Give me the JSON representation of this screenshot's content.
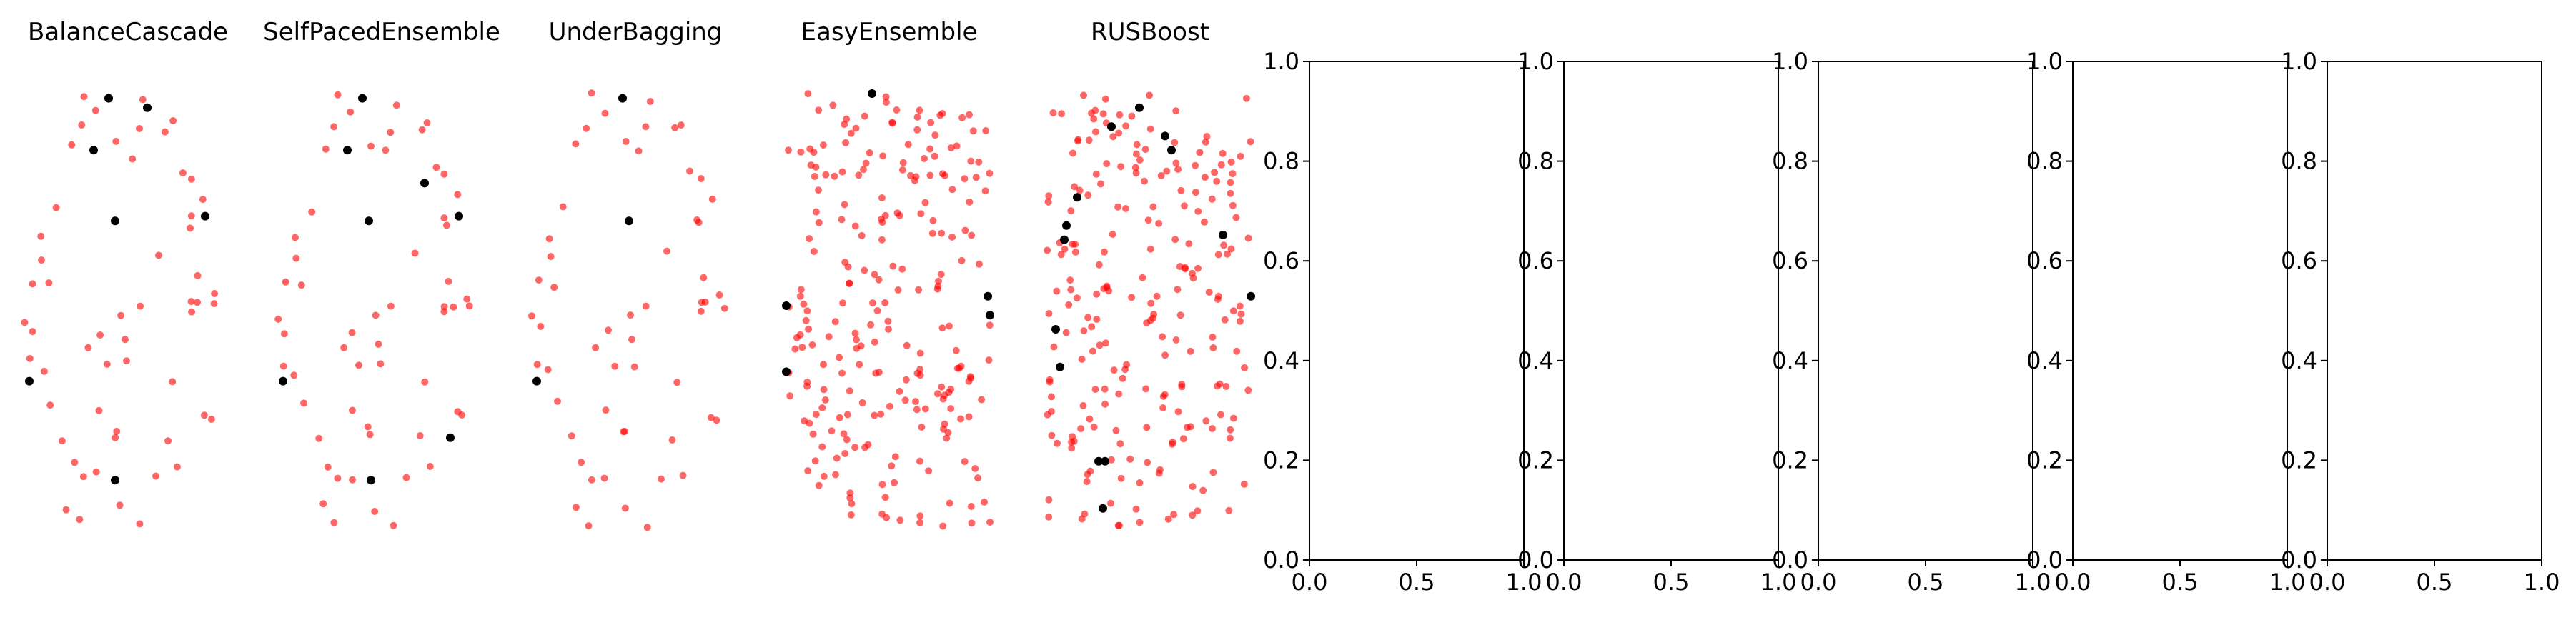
{
  "chart_data": [
    {
      "type": "scatter",
      "title": "BalanceCascade",
      "axis_visible": false
    },
    {
      "type": "scatter",
      "title": "SelfPacedEnsemble",
      "axis_visible": false
    },
    {
      "type": "scatter",
      "title": "UnderBagging",
      "axis_visible": false
    },
    {
      "type": "scatter",
      "title": "EasyEnsemble",
      "axis_visible": false
    },
    {
      "type": "scatter",
      "title": "RUSBoost",
      "axis_visible": false
    },
    {
      "type": "empty",
      "title": "",
      "axis_visible": true,
      "xlim": [
        0,
        1
      ],
      "ylim": [
        0,
        1
      ],
      "xticks": [
        "0.0",
        "0.5",
        "1.0"
      ],
      "yticks": [
        "0.0",
        "0.2",
        "0.4",
        "0.6",
        "0.8",
        "1.0"
      ]
    },
    {
      "type": "empty",
      "title": "",
      "axis_visible": true,
      "xlim": [
        0,
        1
      ],
      "ylim": [
        0,
        1
      ],
      "xticks": [
        "0.0",
        "0.5",
        "1.0"
      ],
      "yticks": [
        "0.0",
        "0.2",
        "0.4",
        "0.6",
        "0.8",
        "1.0"
      ]
    },
    {
      "type": "empty",
      "title": "",
      "axis_visible": true,
      "xlim": [
        0,
        1
      ],
      "ylim": [
        0,
        1
      ],
      "xticks": [
        "0.0",
        "0.5",
        "1.0"
      ],
      "yticks": [
        "0.0",
        "0.2",
        "0.4",
        "0.6",
        "0.8",
        "1.0"
      ]
    },
    {
      "type": "empty",
      "title": "",
      "axis_visible": true,
      "xlim": [
        0,
        1
      ],
      "ylim": [
        0,
        1
      ],
      "xticks": [
        "0.0",
        "0.5",
        "1.0"
      ],
      "yticks": [
        "0.0",
        "0.2",
        "0.4",
        "0.6",
        "0.8",
        "1.0"
      ]
    },
    {
      "type": "empty",
      "title": "",
      "axis_visible": true,
      "xlim": [
        0,
        1
      ],
      "ylim": [
        0,
        1
      ],
      "xticks": [
        "0.0",
        "0.5",
        "1.0"
      ],
      "yticks": [
        "0.0",
        "0.2",
        "0.4",
        "0.6",
        "0.8",
        "1.0"
      ]
    }
  ],
  "colors": {
    "minority": "#000000",
    "majority": "#ff0000",
    "axis": "#000000"
  }
}
